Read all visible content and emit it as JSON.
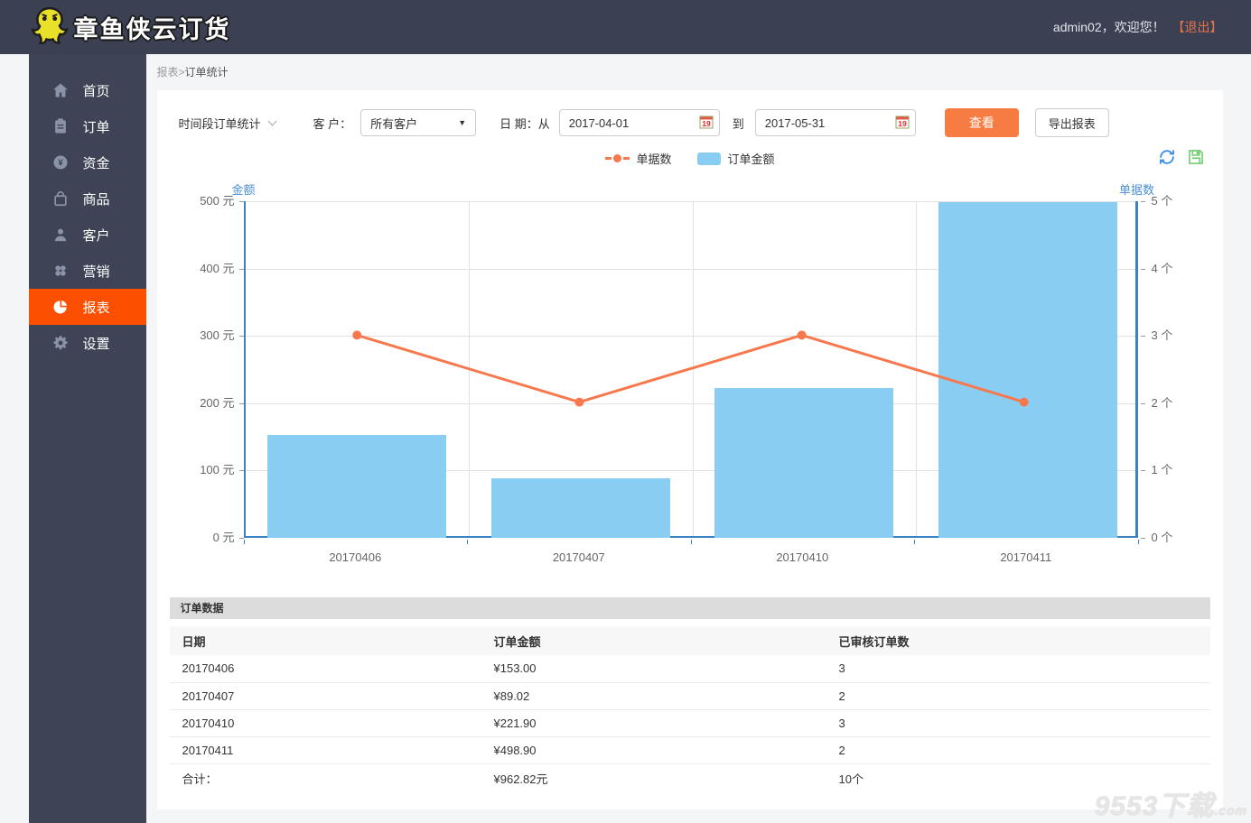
{
  "header": {
    "logo_text": "章鱼侠云订货",
    "welcome": "admin02，欢迎您！",
    "logout": "【退出】"
  },
  "sidebar": {
    "items": [
      {
        "label": "首页",
        "icon": "home",
        "active": false
      },
      {
        "label": "订单",
        "icon": "order-clipboard",
        "active": false
      },
      {
        "label": "资金",
        "icon": "yen-coin",
        "active": false
      },
      {
        "label": "商品",
        "icon": "shopping-bag",
        "active": false
      },
      {
        "label": "客户",
        "icon": "customer-person",
        "active": false
      },
      {
        "label": "营销",
        "icon": "marketing-dots",
        "active": false
      },
      {
        "label": "报表",
        "icon": "report-pie",
        "active": true
      },
      {
        "label": "设置",
        "icon": "settings-gear",
        "active": false
      }
    ]
  },
  "breadcrumb": {
    "parent": "报表",
    "separator": ">",
    "current": "订单统计"
  },
  "toolbar": {
    "report_type": "时间段订单统计",
    "customer_label": "客 户：",
    "customer_value": "所有客户",
    "date_from_label": "日 期：从",
    "date_from": "2017-04-01",
    "date_to_label": "到",
    "date_to": "2017-05-31",
    "view_button": "查看",
    "export_button": "导出报表"
  },
  "legend": [
    {
      "label": "单据数",
      "type": "line",
      "color": "#f8784d"
    },
    {
      "label": "订单金额",
      "type": "bar",
      "color": "#8acdf3"
    }
  ],
  "chart_data": {
    "type": "combo",
    "categories": [
      "20170406",
      "20170407",
      "20170410",
      "20170411"
    ],
    "series": [
      {
        "name": "订单金额",
        "type": "bar",
        "axis": "left",
        "color": "#8acdf3",
        "values": [
          153.0,
          89.02,
          221.9,
          498.9
        ]
      },
      {
        "name": "单据数",
        "type": "line",
        "axis": "right",
        "color": "#f8784d",
        "values": [
          3,
          2,
          3,
          2
        ]
      }
    ],
    "left_axis": {
      "title": "金额",
      "min": 0,
      "max": 500,
      "ticks": [
        "500 元",
        "400 元",
        "300 元",
        "200 元",
        "100 元",
        "0 元"
      ]
    },
    "right_axis": {
      "title": "单据数",
      "min": 0,
      "max": 5,
      "ticks": [
        "5 个",
        "4 个",
        "3 个",
        "2 个",
        "1 个",
        "0 个"
      ]
    },
    "grid": true,
    "legend_position": "top-center"
  },
  "table": {
    "section_title": "订单数据",
    "headers": [
      "日期",
      "订单金额",
      "已审核订单数"
    ],
    "rows": [
      [
        "20170406",
        "¥153.00",
        "3"
      ],
      [
        "20170407",
        "¥89.02",
        "2"
      ],
      [
        "20170410",
        "¥221.90",
        "3"
      ],
      [
        "20170411",
        "¥498.90",
        "2"
      ]
    ],
    "footer": [
      "合计：",
      "¥962.82元",
      "10个"
    ]
  },
  "icons": {
    "top_right": [
      "refresh-icon",
      "save-icon"
    ],
    "date_field": "calendar-icon"
  },
  "colors": {
    "header_bg": "#3b4053",
    "sidebar_bg": "#3e4455",
    "active_nav": "#fc5000",
    "primary_button": "#f67c42",
    "axis": "#3a82c4",
    "bar": "#8acdf3",
    "line": "#f8784d"
  },
  "watermark": {
    "text": "9553下载",
    "suffix": ".com"
  }
}
